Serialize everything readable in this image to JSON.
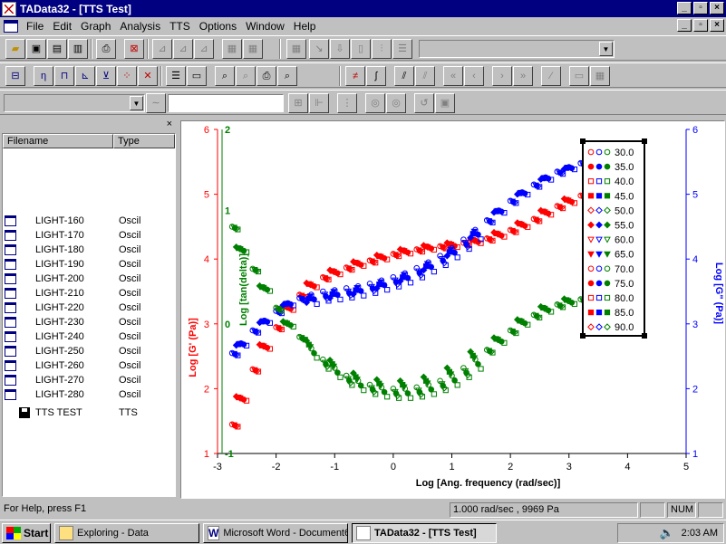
{
  "window": {
    "title": "TAData32 - [TTS Test]",
    "btn_min": "_",
    "btn_max": "▫",
    "btn_close": "×"
  },
  "menu": {
    "items": [
      "File",
      "Edit",
      "Graph",
      "Analysis",
      "TTS",
      "Options",
      "Window",
      "Help"
    ]
  },
  "panel": {
    "close": "×",
    "col_filename": "Filename",
    "col_type": "Type",
    "files": [
      {
        "name": "LIGHT-160",
        "type": "Oscil"
      },
      {
        "name": "LIGHT-170",
        "type": "Oscil"
      },
      {
        "name": "LIGHT-180",
        "type": "Oscil"
      },
      {
        "name": "LIGHT-190",
        "type": "Oscil"
      },
      {
        "name": "LIGHT-200",
        "type": "Oscil"
      },
      {
        "name": "LIGHT-210",
        "type": "Oscil"
      },
      {
        "name": "LIGHT-220",
        "type": "Oscil"
      },
      {
        "name": "LIGHT-230",
        "type": "Oscil"
      },
      {
        "name": "LIGHT-240",
        "type": "Oscil"
      },
      {
        "name": "LIGHT-250",
        "type": "Oscil"
      },
      {
        "name": "LIGHT-260",
        "type": "Oscil"
      },
      {
        "name": "LIGHT-270",
        "type": "Oscil"
      },
      {
        "name": "LIGHT-280",
        "type": "Oscil"
      }
    ],
    "tts_name": "TTS TEST",
    "tts_type": "TTS"
  },
  "chart_data": {
    "type": "scatter",
    "xlabel": "Log [Ang. frequency (rad/sec)]",
    "xlim": [
      -3,
      5
    ],
    "x_ticks": [
      "-3",
      "-2",
      "-1",
      "0",
      "1",
      "2",
      "3",
      "4",
      "5"
    ],
    "y_left_label": "Log [G' (Pa)]",
    "y_left_lim": [
      1,
      6
    ],
    "y_left_ticks": [
      "1",
      "2",
      "3",
      "4",
      "5",
      "6"
    ],
    "y_mid_label": "Log [tan(delta)]",
    "y_mid_ticks": [
      "1",
      "0",
      "-1",
      "2"
    ],
    "y_right_label": "Log [G\" (Pa)]",
    "y_right_lim": [
      1,
      6
    ],
    "y_right_ticks": [
      "1",
      "2",
      "3",
      "4",
      "5",
      "6"
    ],
    "colors": {
      "gprime": "#ff0000",
      "gdouble": "#0000ff",
      "tan": "#008000"
    },
    "legend_position": "top-right",
    "legend": [
      "30.0",
      "35.0",
      "40.0",
      "45.0",
      "50.0",
      "55.0",
      "60.0",
      "65.0",
      "70.0",
      "75.0",
      "80.0",
      "85.0",
      "90.0"
    ],
    "series": [
      {
        "curve": "gprime",
        "x": [
          -2.75,
          -2.6,
          -2.4,
          -2.2,
          -2.0,
          -1.8,
          -1.6,
          -1.4,
          -1.2,
          -1.0,
          -0.8,
          -0.6,
          -0.4,
          -0.2,
          0.0,
          0.2,
          0.4,
          0.6,
          0.8,
          1.0,
          1.2,
          1.4,
          1.6,
          1.8,
          2.0,
          2.2,
          2.4,
          2.6,
          2.8,
          3.0,
          3.2
        ],
        "y": [
          1.45,
          1.85,
          2.3,
          2.65,
          2.95,
          3.25,
          3.45,
          3.6,
          3.72,
          3.8,
          3.87,
          3.93,
          3.98,
          4.03,
          4.08,
          4.12,
          4.15,
          4.18,
          4.2,
          4.22,
          4.25,
          4.28,
          4.32,
          4.38,
          4.45,
          4.53,
          4.62,
          4.72,
          4.82,
          4.9,
          4.98
        ]
      },
      {
        "curve": "gdouble",
        "x": [
          -2.75,
          -2.6,
          -2.4,
          -2.2,
          -2.0,
          -1.8,
          -1.6,
          -1.4,
          -1.2,
          -1.0,
          -0.8,
          -0.6,
          -0.4,
          -0.2,
          0.0,
          0.2,
          0.4,
          0.6,
          0.8,
          1.0,
          1.2,
          1.4,
          1.6,
          1.8,
          2.0,
          2.2,
          2.4,
          2.6,
          2.8,
          3.0,
          3.2
        ],
        "y": [
          2.55,
          2.7,
          2.9,
          3.05,
          3.2,
          3.32,
          3.4,
          3.45,
          3.5,
          3.52,
          3.55,
          3.58,
          3.62,
          3.67,
          3.72,
          3.78,
          3.86,
          3.95,
          4.05,
          4.17,
          4.3,
          4.45,
          4.6,
          4.75,
          4.9,
          5.03,
          5.15,
          5.26,
          5.35,
          5.42,
          5.48
        ]
      },
      {
        "curve": "tan",
        "x": [
          -2.75,
          -2.6,
          -2.4,
          -2.2,
          -2.0,
          -1.8,
          -1.6,
          -1.4,
          -1.2,
          -1.0,
          -0.8,
          -0.6,
          -0.4,
          -0.2,
          0.0,
          0.2,
          0.4,
          0.6,
          0.8,
          1.0,
          1.2,
          1.4,
          1.6,
          1.8,
          2.0,
          2.2,
          2.4,
          2.6,
          2.8,
          3.0,
          3.2
        ],
        "y": [
          4.5,
          4.15,
          3.85,
          3.55,
          3.25,
          3.0,
          2.8,
          2.62,
          2.45,
          2.32,
          2.2,
          2.12,
          2.06,
          2.02,
          2.0,
          2.0,
          2.02,
          2.06,
          2.12,
          2.2,
          2.32,
          2.45,
          2.6,
          2.75,
          2.9,
          3.03,
          3.14,
          3.23,
          3.3,
          3.35,
          3.38
        ]
      }
    ]
  },
  "status": {
    "help": "For Help, press F1",
    "readout": "1.000 rad/sec , 9969 Pa",
    "num": "NUM"
  },
  "taskbar": {
    "start": "Start",
    "task1": "Exploring - Data",
    "task2": "Microsoft Word - Document6",
    "task3": "TAData32 - [TTS Test]",
    "clock": "2:03 AM"
  }
}
